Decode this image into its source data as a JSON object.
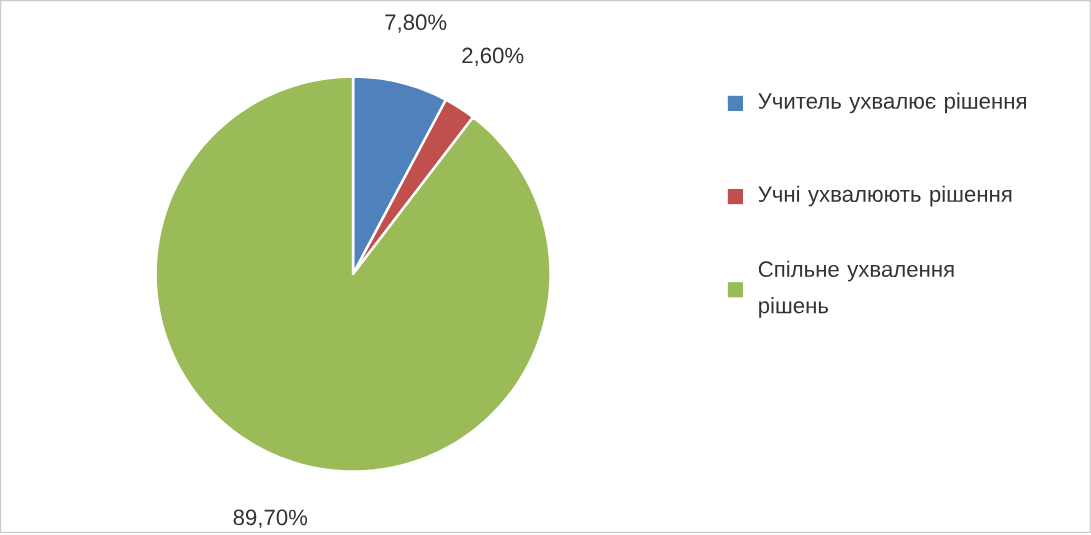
{
  "chart_data": {
    "type": "pie",
    "categories": [
      "Учитель ухвалює рішення",
      "Учні ухвалюють рішення",
      "Спільне ухвалення рішень"
    ],
    "values": [
      7.8,
      2.6,
      89.7
    ],
    "colors": [
      "#4f81bd",
      "#c0504d",
      "#9bbb59"
    ],
    "value_labels": [
      "7,80%",
      "2,60%",
      "89,70%"
    ],
    "legend": "right"
  }
}
